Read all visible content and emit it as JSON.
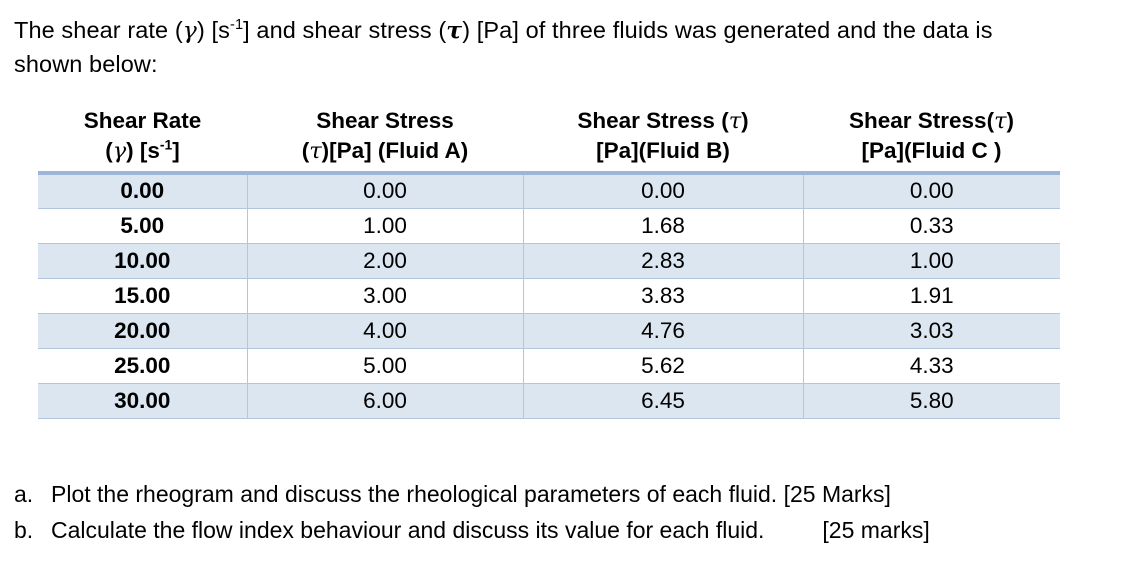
{
  "intro": {
    "pre": "The shear rate (",
    "gamma": "γ",
    "mid1": ") [s",
    "sup1": "-1",
    "mid2": "] and shear stress (",
    "tau": "τ",
    "post": ") [Pa] of three fluids was generated and the data is",
    "line2": "shown below:"
  },
  "table": {
    "headers": [
      {
        "line1": "Shear Rate",
        "l2a": "(",
        "greek": "γ",
        "l2b": ") [s",
        "sup": "-1",
        "l2c": "]"
      },
      {
        "line1": "Shear Stress",
        "l2a": "(",
        "greek": "τ",
        "l2b": ")[Pa] (Fluid A)"
      },
      {
        "l1a": "Shear Stress (",
        "greek": "τ",
        "l1b": ")",
        "line2": "[Pa](Fluid B)"
      },
      {
        "l1a": "Shear Stress(",
        "greek": "τ",
        "l1b": ")",
        "line2": "[Pa](Fluid C )"
      }
    ],
    "rows": [
      [
        "0.00",
        "0.00",
        "0.00",
        "0.00"
      ],
      [
        "5.00",
        "1.00",
        "1.68",
        "0.33"
      ],
      [
        "10.00",
        "2.00",
        "2.83",
        "1.00"
      ],
      [
        "15.00",
        "3.00",
        "3.83",
        "1.91"
      ],
      [
        "20.00",
        "4.00",
        "4.76",
        "3.03"
      ],
      [
        "25.00",
        "5.00",
        "5.62",
        "4.33"
      ],
      [
        "30.00",
        "6.00",
        "6.45",
        "5.80"
      ]
    ]
  },
  "questions": [
    {
      "marker": "a.",
      "text": "Plot the rheogram and discuss the rheological parameters of each fluid. [25 Marks]"
    },
    {
      "marker": "b.",
      "text": "Calculate the flow index behaviour and discuss its value for each fluid.",
      "marks": "[25 marks]"
    }
  ],
  "colors": {
    "row_shade": "#dce6f1",
    "heavy_border": "#9db5d8",
    "light_border": "#b3c6e1",
    "text": "#000000",
    "background": "#ffffff"
  }
}
